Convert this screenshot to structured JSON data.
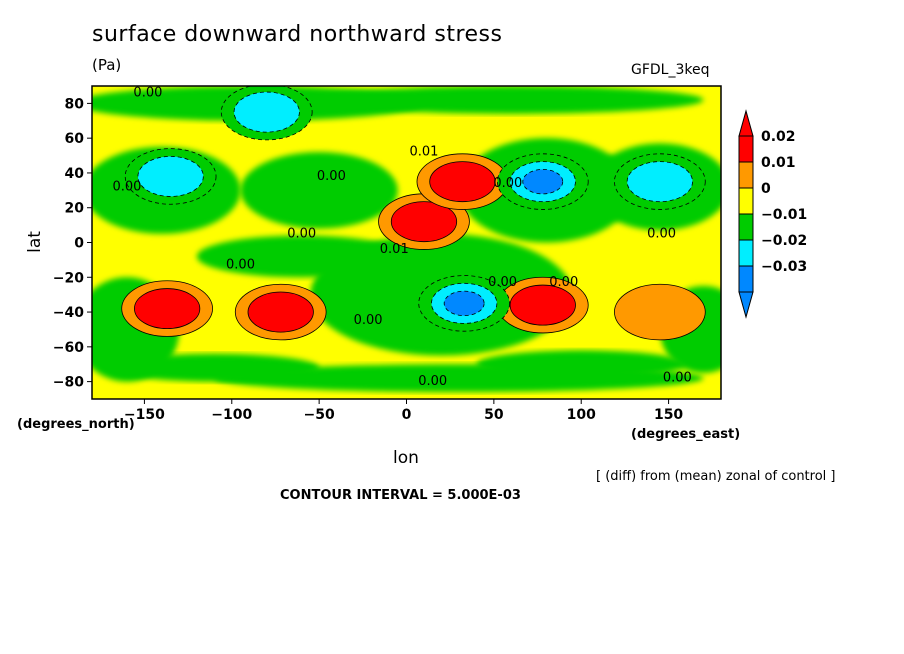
{
  "header": {
    "title": "surface downward northward stress",
    "units": "(Pa)",
    "model": "GFDL_3keq"
  },
  "footer": {
    "note": "[ (diff) from (mean) zonal of control ]",
    "contour_interval": "CONTOUR INTERVAL = 5.000E-03"
  },
  "chart_data": {
    "type": "heatmap",
    "title": "surface downward northward stress",
    "units": "Pa",
    "xlabel": "lon",
    "ylabel": "lat",
    "x_unit_label": "(degrees_east)",
    "y_unit_label": "(degrees_north)",
    "xlim": [
      -180,
      180
    ],
    "ylim": [
      -90,
      90
    ],
    "x_ticks": [
      -150,
      -100,
      -50,
      0,
      50,
      100,
      150
    ],
    "y_ticks": [
      80,
      60,
      40,
      20,
      0,
      -20,
      -40,
      -60,
      -80
    ],
    "contour_interval": 0.005,
    "colorbar": {
      "labels": [
        "0.02",
        "0.01",
        "0",
        "-0.01",
        "-0.02",
        "-0.03"
      ],
      "levels": [
        {
          "range": [
            0.02,
            0.03
          ],
          "color": "#ff0000"
        },
        {
          "range": [
            0.01,
            0.02
          ],
          "color": "#ff9900"
        },
        {
          "range": [
            0.0,
            0.01
          ],
          "color": "#ffff00"
        },
        {
          "range": [
            -0.01,
            0.0
          ],
          "color": "#00cc00"
        },
        {
          "range": [
            -0.02,
            -0.01
          ],
          "color": "#00eeff"
        },
        {
          "range": [
            -0.03,
            -0.02
          ],
          "color": "#0088ff"
        }
      ],
      "extend_top_color": "#ff0000",
      "extend_bottom_color": "#0088ff"
    },
    "features": [
      {
        "lon": 10,
        "lat": 12,
        "value": 0.03
      },
      {
        "lon": 32,
        "lat": 35,
        "value": 0.03
      },
      {
        "lon": 78,
        "lat": -36,
        "value": 0.03
      },
      {
        "lon": -137,
        "lat": -38,
        "value": 0.025
      },
      {
        "lon": -72,
        "lat": -40,
        "value": 0.025
      },
      {
        "lon": 145,
        "lat": -40,
        "value": 0.015
      },
      {
        "lon": -135,
        "lat": 38,
        "value": -0.02
      },
      {
        "lon": 78,
        "lat": 35,
        "value": -0.025
      },
      {
        "lon": 145,
        "lat": 35,
        "value": -0.02
      },
      {
        "lon": 33,
        "lat": -35,
        "value": -0.03
      },
      {
        "lon": -80,
        "lat": 75,
        "value": -0.012
      }
    ],
    "contour_labels": [
      {
        "text": "0.00",
        "lon": -148,
        "lat": 84
      },
      {
        "text": "0.00",
        "lon": -160,
        "lat": 30
      },
      {
        "text": "0.00",
        "lon": -43,
        "lat": 36
      },
      {
        "text": "0.01",
        "lon": 10,
        "lat": 50
      },
      {
        "text": "0.00",
        "lon": 58,
        "lat": 32
      },
      {
        "text": "0.00",
        "lon": -60,
        "lat": 3
      },
      {
        "text": "0.01",
        "lon": -7,
        "lat": -6
      },
      {
        "text": "0.00",
        "lon": -95,
        "lat": -15
      },
      {
        "text": "0.00",
        "lon": -22,
        "lat": -47
      },
      {
        "text": "0.00",
        "lon": 55,
        "lat": -25
      },
      {
        "text": "0.00",
        "lon": 90,
        "lat": -25
      },
      {
        "text": "0.00",
        "lon": 146,
        "lat": 3
      },
      {
        "text": "0.00",
        "lon": 15,
        "lat": -82
      },
      {
        "text": "0.00",
        "lon": 155,
        "lat": -80
      }
    ]
  }
}
